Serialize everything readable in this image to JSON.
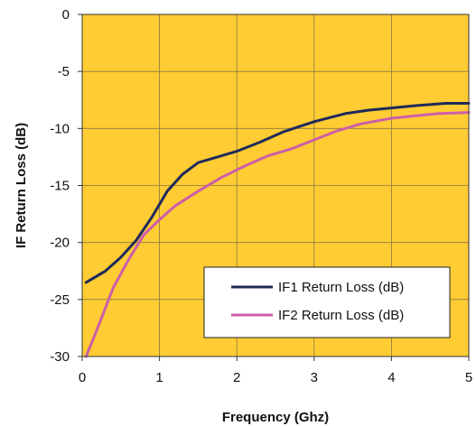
{
  "chart_data": {
    "type": "line",
    "title": "",
    "xlabel": "Frequency (Ghz)",
    "ylabel": "IF Return Loss (dB)",
    "xlim": [
      0,
      5
    ],
    "ylim": [
      -30,
      0
    ],
    "x_ticks": [
      "0",
      "1",
      "2",
      "3",
      "4",
      "5"
    ],
    "y_ticks": [
      "0",
      "-5",
      "-10",
      "-15",
      "-20",
      "-25",
      "-30"
    ],
    "grid": true,
    "legend_position": "bottom-right",
    "plot_background": "#FFCC33",
    "series": [
      {
        "name": "IF1 Return Loss (dB)",
        "color": "#1F2A5A",
        "x": [
          0.05,
          0.3,
          0.5,
          0.7,
          0.9,
          1.1,
          1.3,
          1.5,
          1.75,
          2.0,
          2.3,
          2.6,
          3.0,
          3.4,
          3.7,
          4.0,
          4.3,
          4.7,
          5.0
        ],
        "y": [
          -23.5,
          -22.5,
          -21.3,
          -19.8,
          -17.8,
          -15.5,
          -14.0,
          -13.0,
          -12.5,
          -12.0,
          -11.2,
          -10.3,
          -9.4,
          -8.7,
          -8.4,
          -8.2,
          -8.0,
          -7.8,
          -7.8
        ]
      },
      {
        "name": "IF2 Return Loss (dB)",
        "color": "#CC5FA8",
        "x": [
          0.05,
          0.2,
          0.4,
          0.6,
          0.8,
          1.0,
          1.2,
          1.5,
          1.8,
          2.1,
          2.4,
          2.7,
          3.0,
          3.3,
          3.6,
          4.0,
          4.3,
          4.6,
          5.0
        ],
        "y": [
          -30.0,
          -27.5,
          -24.0,
          -21.5,
          -19.3,
          -18.0,
          -16.8,
          -15.5,
          -14.3,
          -13.3,
          -12.4,
          -11.8,
          -11.0,
          -10.2,
          -9.6,
          -9.1,
          -8.9,
          -8.7,
          -8.6
        ]
      }
    ]
  }
}
